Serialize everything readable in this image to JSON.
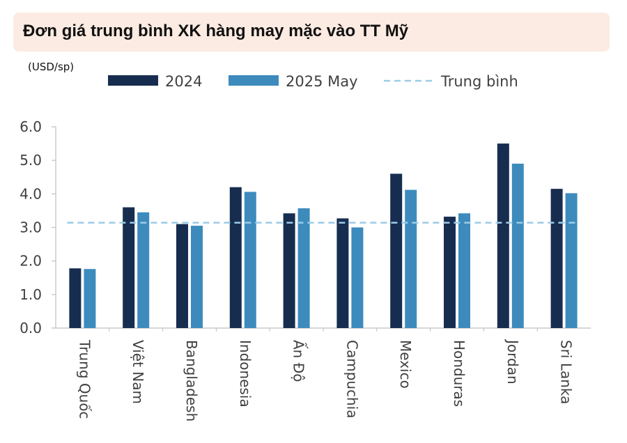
{
  "title": "Đơn giá trung bình XK hàng may mặc vào TT Mỹ",
  "unit": "(USD/sp)",
  "colors": {
    "series_2024": "#172d50",
    "series_2025": "#3d8bbd",
    "average_line": "#9ccbe6",
    "title_bg": "#fcebe2",
    "axis": "#bfbfbf"
  },
  "chart_data": {
    "type": "bar",
    "categories": [
      "Trung Quốc",
      "Việt Nam",
      "Bangladesh",
      "Indonesia",
      "Ấn Độ",
      "Campuchia",
      "Mexico",
      "Honduras",
      "Jordan",
      "Sri Lanka"
    ],
    "series": [
      {
        "name": "2024",
        "values": [
          1.78,
          3.6,
          3.1,
          4.2,
          3.42,
          3.27,
          4.6,
          3.32,
          5.5,
          4.15
        ]
      },
      {
        "name": "2025 May",
        "values": [
          1.76,
          3.45,
          3.05,
          4.06,
          3.57,
          3.0,
          4.12,
          3.42,
          4.9,
          4.02
        ]
      }
    ],
    "average": {
      "name": "Trung bình",
      "value": 3.14,
      "style": "dashed"
    },
    "ylim": [
      0,
      6
    ],
    "yticks": [
      "0.0",
      "1.0",
      "2.0",
      "3.0",
      "4.0",
      "5.0",
      "6.0"
    ],
    "legend_position": "top",
    "grid": false
  }
}
